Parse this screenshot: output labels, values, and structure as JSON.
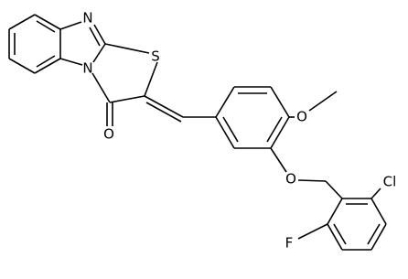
{
  "atoms": {
    "n1": "N",
    "n2": "N",
    "s": "S",
    "o_carbonyl": "O",
    "o_methoxy": "O",
    "o_ether": "O",
    "cl": "Cl",
    "f": "F"
  }
}
